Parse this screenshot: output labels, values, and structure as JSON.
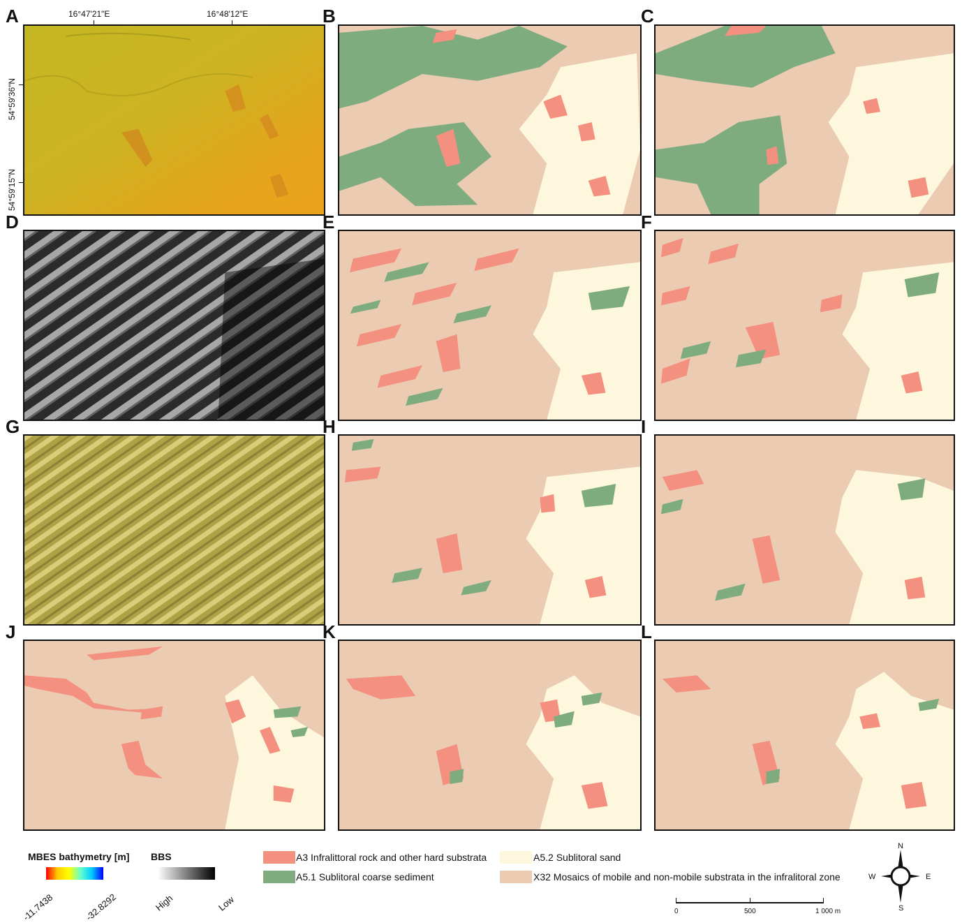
{
  "panels": {
    "A": "A",
    "B": "B",
    "C": "C",
    "D": "D",
    "E": "E",
    "F": "F",
    "G": "G",
    "H": "H",
    "I": "I",
    "J": "J",
    "K": "K",
    "L": "L"
  },
  "coordinates": {
    "lon1": "16°47'21\"E",
    "lon2": "16°48'12\"E",
    "lat1": "54°59'36\"N",
    "lat2": "54°59'15\"N"
  },
  "legend": {
    "mbes_title": "MBES bathymetry [m]",
    "mbes_min": "-11.7438",
    "mbes_max": "-32.8292",
    "bbs_title": "BBS",
    "bbs_high": "High",
    "bbs_low": "Low",
    "classes": [
      {
        "label": "A3 Infralittoral rock and other hard substrata",
        "color": "#f4907f"
      },
      {
        "label": "A5.1 Sublitoral coarse sediment",
        "color": "#7fac7f"
      },
      {
        "label": "A5.2 Sublitoral sand",
        "color": "#fdf8dd"
      },
      {
        "label": "X32 Mosaics of mobile and non-mobile substrata in the infralitoral zone",
        "color": "#ebcbb2"
      }
    ]
  },
  "scalebar": {
    "v0": "0",
    "v1": "500",
    "v2": "1 000 m"
  },
  "compass": {
    "n": "N",
    "s": "S",
    "e": "E",
    "w": "W"
  },
  "colors": {
    "rock": "#f4907f",
    "coarse": "#7fac7f",
    "sand": "#fdf8dd",
    "mosaic": "#ebcbb2",
    "bathy_a": "#c7b51f",
    "bathy_b": "#e9a11b"
  }
}
